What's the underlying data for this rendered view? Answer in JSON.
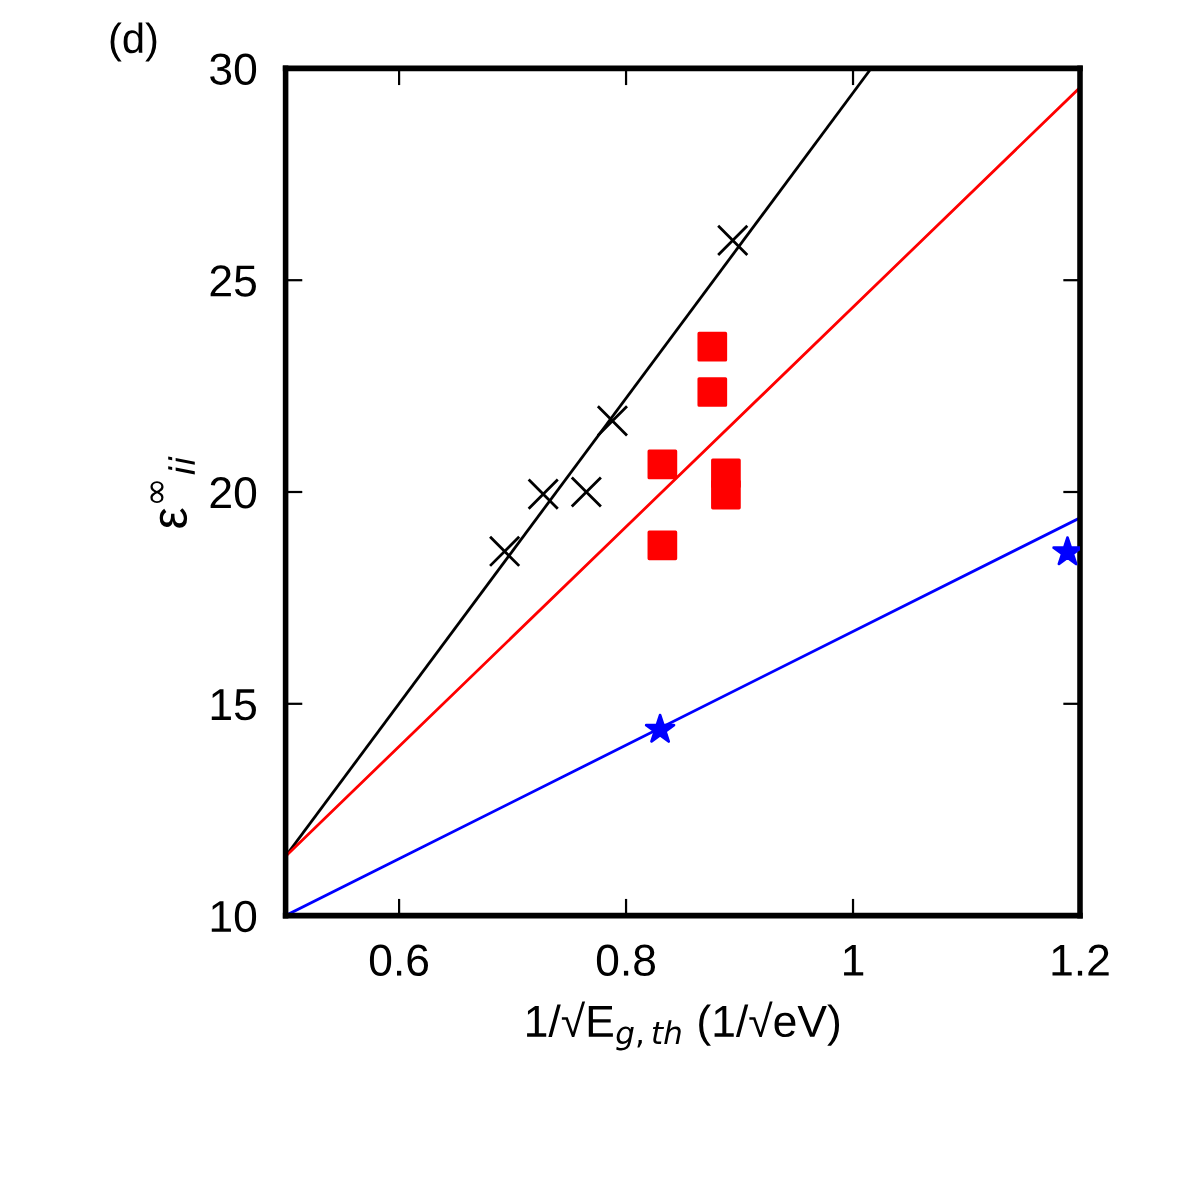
{
  "chart_data": {
    "type": "scatter",
    "xlabel": "1/√E$_{g,th}$ (1/√eV)",
    "ylabel": "ε$^{∞}$$_{ii}$",
    "annotations": [
      "(d)"
    ],
    "xlim": [
      0.5,
      1.2
    ],
    "ylim": [
      10,
      30
    ],
    "xticks": [
      0.6,
      0.8,
      1,
      1.2
    ],
    "yticks": [
      10,
      15,
      20,
      25,
      30
    ],
    "grid": false,
    "legend": false,
    "series": [
      {
        "type": "line",
        "color": "#000000",
        "x": [
          0.5,
          1.016
        ],
        "values": [
          11.4,
          30
        ],
        "marker": "none"
      },
      {
        "type": "line",
        "color": "#ff0000",
        "x": [
          0.5,
          1.2
        ],
        "values": [
          11.4,
          29.55
        ],
        "marker": "none"
      },
      {
        "type": "line",
        "color": "#0000ff",
        "x": [
          0.5,
          1.2
        ],
        "values": [
          10,
          19.39
        ],
        "marker": "none"
      },
      {
        "color": "#000000",
        "marker": "cross",
        "x": [
          0.693,
          0.727,
          0.765,
          0.788,
          0.894
        ],
        "values": [
          18.6,
          19.95,
          20.0,
          21.68,
          25.94
        ]
      },
      {
        "color": "#ff0000",
        "marker": "square",
        "x": [
          0.876,
          0.888,
          0.832
        ],
        "values": [
          23.43,
          20.44,
          18.74
        ]
      },
      {
        "color": "#ff0000",
        "marker": "square",
        "x": [
          0.876,
          0.832,
          0.888
        ],
        "values": [
          22.36,
          20.65,
          19.94
        ]
      },
      {
        "color": "#0000ff",
        "marker": "star",
        "x": [
          0.83,
          1.189
        ],
        "values": [
          14.39,
          18.58
        ]
      }
    ]
  }
}
